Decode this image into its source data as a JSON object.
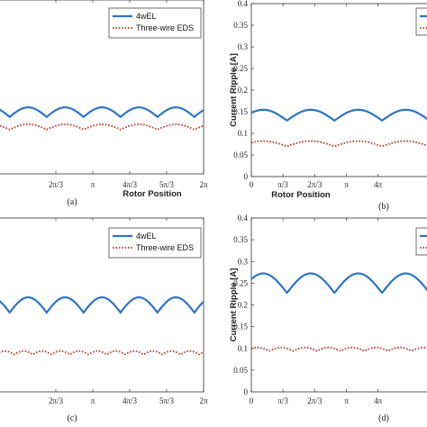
{
  "chart_data": [
    {
      "panel": "(a)",
      "type": "line",
      "xlabel": "Rotor Position",
      "ylabel": "",
      "xlim": [
        0,
        6.2832
      ],
      "x_ticks": [
        "2π/3",
        "π",
        "4π/3",
        "5π/3",
        "2π"
      ],
      "legend": {
        "placement": "top-right",
        "entries": [
          "4wEL",
          "Three-wire EDS"
        ]
      },
      "series": [
        {
          "name": "4wEL",
          "color": "#2f74c4",
          "style": "solid",
          "mean": 0.142,
          "amplitude": 0.022,
          "period_pi_fraction": 0.3333
        },
        {
          "name": "Three-wire EDS",
          "color": "#c0392b",
          "style": "dotted",
          "mean": 0.108,
          "amplitude": 0.012,
          "period_pi_fraction": 0.3333
        }
      ]
    },
    {
      "panel": "(b)",
      "type": "line",
      "xlabel": "Rotor Position",
      "ylabel": "Current Ripple [A]",
      "ylim": [
        0,
        0.4
      ],
      "y_ticks": [
        "0",
        "0.05",
        "0.1",
        "0.15",
        "0.2",
        "0.25",
        "0.3",
        "0.35",
        "0.4"
      ],
      "x_ticks": [
        "0",
        "π/3",
        "2π/3",
        "π",
        "4π"
      ],
      "legend": {
        "placement": "top-right",
        "entries": [
          "",
          ""
        ]
      },
      "series": [
        {
          "name": "4wEL",
          "color": "#2f74c4",
          "style": "solid",
          "mean": 0.142,
          "amplitude": 0.025,
          "period_pi_fraction": 0.3333
        },
        {
          "name": "Three-wire EDS",
          "color": "#c0392b",
          "style": "dotted",
          "mean": 0.076,
          "amplitude": 0.012,
          "period_pi_fraction": 0.3333
        }
      ]
    },
    {
      "panel": "(c)",
      "type": "line",
      "xlabel": "",
      "ylabel": "",
      "xlim": [
        0,
        6.2832
      ],
      "x_ticks": [
        "2π/3",
        "π",
        "4π/3",
        "5π/3",
        "2π"
      ],
      "legend": {
        "placement": "top-right",
        "entries": [
          "4wEL",
          "Three-wire EDS"
        ]
      },
      "series": [
        {
          "name": "4wEL",
          "color": "#2f74c4",
          "style": "solid",
          "mean": 0.2,
          "amplitude": 0.035,
          "period_pi_fraction": 0.3333
        },
        {
          "name": "Three-wire EDS",
          "color": "#c0392b",
          "style": "dotted",
          "mean": 0.09,
          "amplitude": 0.008,
          "period_pi_fraction": 0.1667
        }
      ]
    },
    {
      "panel": "(d)",
      "type": "line",
      "xlabel": "",
      "ylabel": "Current Ripple [A]",
      "ylim": [
        0,
        0.4
      ],
      "y_ticks": [
        "0",
        "0.05",
        "0.1",
        "0.15",
        "0.2",
        "0.25",
        "0.3",
        "0.35",
        "0.4"
      ],
      "x_ticks": [
        "0",
        "π/3",
        "2π/3",
        "π",
        "4π"
      ],
      "legend": {
        "placement": "top-right",
        "entries": [
          "",
          ""
        ]
      },
      "series": [
        {
          "name": "4wEL",
          "color": "#2f74c4",
          "style": "solid",
          "mean": 0.25,
          "amplitude": 0.045,
          "period_pi_fraction": 0.3333
        },
        {
          "name": "Three-wire EDS",
          "color": "#c0392b",
          "style": "dotted",
          "mean": 0.098,
          "amplitude": 0.008,
          "period_pi_fraction": 0.1667
        }
      ]
    }
  ]
}
